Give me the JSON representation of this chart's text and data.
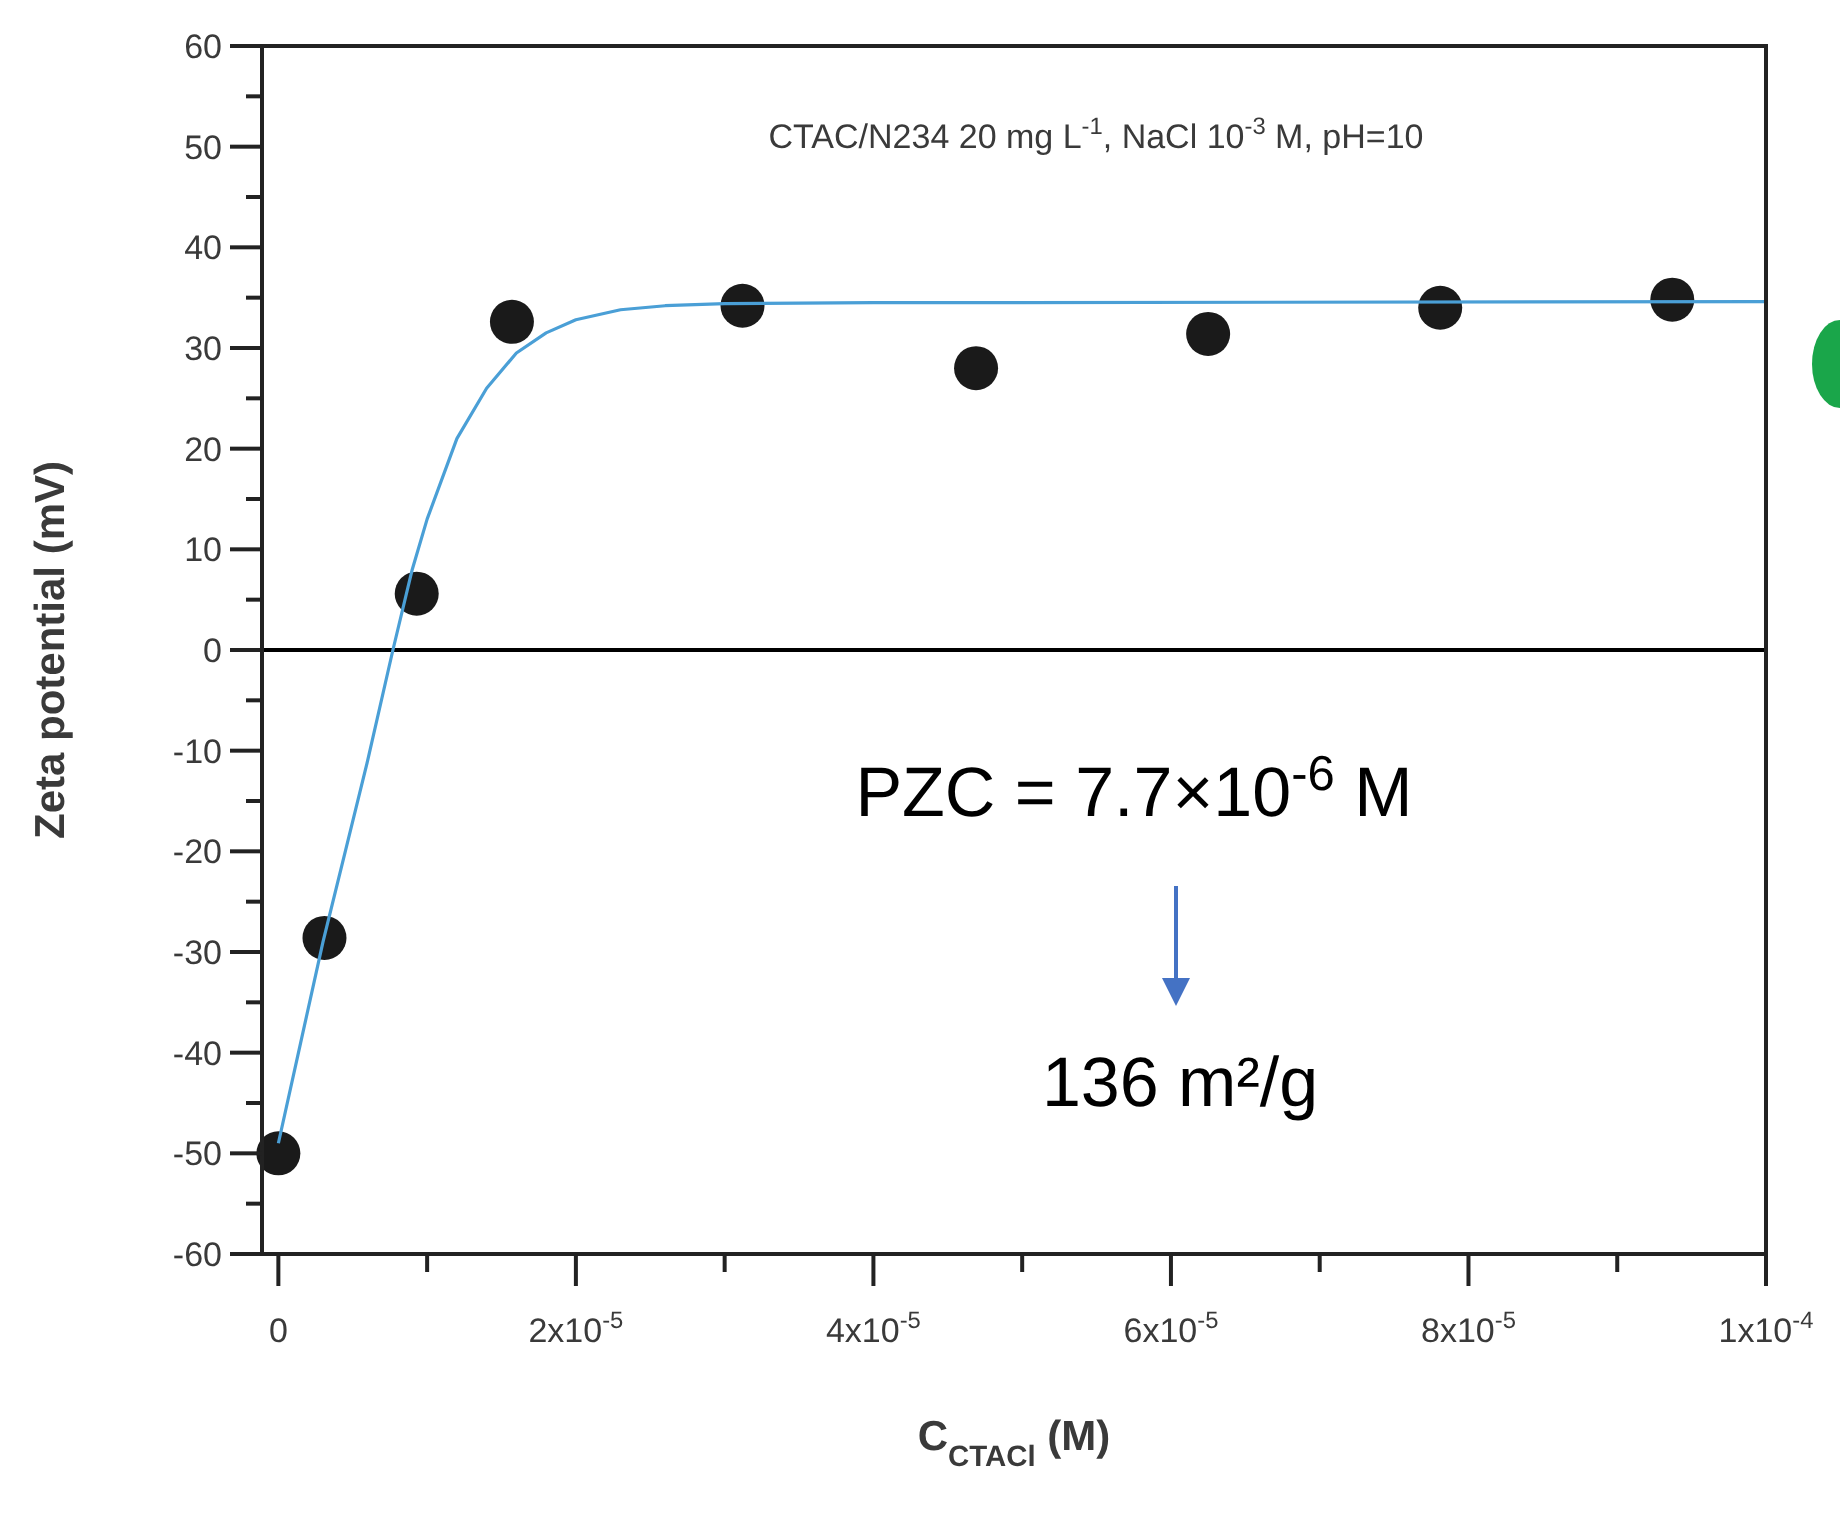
{
  "chart_data": {
    "type": "scatter",
    "xlabel": "C$_{CTACl}$ (M)",
    "ylabel": "Zeta potential (mV)",
    "annotations": [
      "CTAC/N234 20 mg L$^{-1}$, NaCl 10$^{-3}$ M, pH=10",
      "PZC = 7.7×10$^{-6}$ M",
      "136 m²/g"
    ],
    "xlim": [
      -1.1e-06,
      0.0001
    ],
    "ylim": [
      -60,
      60
    ],
    "xticks": [
      {
        "value": 0,
        "label": "0"
      },
      {
        "value": 1e-05,
        "label": null
      },
      {
        "value": 2e-05,
        "label": "2x10$^{-5}$"
      },
      {
        "value": 3e-05,
        "label": null
      },
      {
        "value": 4e-05,
        "label": "4x10$^{-5}$"
      },
      {
        "value": 5e-05,
        "label": null
      },
      {
        "value": 6e-05,
        "label": "6x10$^{-5}$"
      },
      {
        "value": 7e-05,
        "label": null
      },
      {
        "value": 8e-05,
        "label": "8x10$^{-5}$"
      },
      {
        "value": 9e-05,
        "label": null
      },
      {
        "value": 0.0001,
        "label": "1x10$^{-4}$"
      }
    ],
    "yticks": [
      -60,
      {
        "value": -55,
        "label": null
      },
      -50,
      {
        "value": -45,
        "label": null
      },
      -40,
      {
        "value": -35,
        "label": null
      },
      -30,
      {
        "value": -25,
        "label": null
      },
      -20,
      {
        "value": -15,
        "label": null
      },
      -10,
      {
        "value": -5,
        "label": null
      },
      0,
      {
        "value": 5,
        "label": null
      },
      10,
      {
        "value": 15,
        "label": null
      },
      20,
      {
        "value": 25,
        "label": null
      },
      30,
      {
        "value": 35,
        "label": null
      },
      40,
      {
        "value": 45,
        "label": null
      },
      50,
      {
        "value": 55,
        "label": null
      },
      60
    ],
    "ref_lines": [
      {
        "axis": "y",
        "value": 0,
        "color": "#000000"
      }
    ],
    "grid": false,
    "series": [
      {
        "type": "line",
        "color": "#4a9fd6",
        "marker": "none",
        "x": [
          0,
          1.5e-06,
          3e-06,
          4.5e-06,
          6e-06,
          7.7e-06,
          9e-06,
          1e-05,
          1.2e-05,
          1.4e-05,
          1.6e-05,
          1.8e-05,
          2e-05,
          2.3e-05,
          2.6e-05,
          3e-05,
          4e-05,
          0.0001
        ],
        "values": [
          -49,
          -39,
          -29,
          -20,
          -11,
          0,
          8,
          13,
          21,
          26,
          29.5,
          31.5,
          32.8,
          33.8,
          34.2,
          34.4,
          34.5,
          34.6
        ]
      },
      {
        "color": "#1a1a1a",
        "marker": "circle",
        "x": [
          0,
          3.1e-06,
          9.3e-06,
          1.57e-05,
          3.12e-05,
          4.69e-05,
          6.25e-05,
          7.81e-05,
          9.37e-05
        ],
        "values": [
          -50,
          -28.6,
          5.6,
          32.6,
          34.2,
          28,
          31.4,
          34,
          34.8
        ]
      }
    ]
  }
}
